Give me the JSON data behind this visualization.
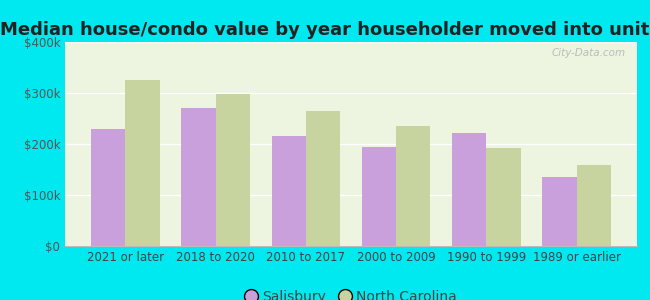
{
  "title": "Median house/condo value by year householder moved into unit",
  "categories": [
    "2021 or later",
    "2018 to 2020",
    "2010 to 2017",
    "2000 to 2009",
    "1990 to 1999",
    "1989 or earlier"
  ],
  "salisbury": [
    230000,
    270000,
    215000,
    195000,
    222000,
    135000
  ],
  "north_carolina": [
    325000,
    298000,
    265000,
    235000,
    192000,
    158000
  ],
  "salisbury_color": "#c9a0dc",
  "nc_color": "#c8d4a0",
  "background_color": "#edf5e0",
  "outer_background": "#00e8f0",
  "ylim": [
    0,
    400000
  ],
  "yticks": [
    0,
    100000,
    200000,
    300000,
    400000
  ],
  "ytick_labels": [
    "$0",
    "$100k",
    "$200k",
    "$300k",
    "$400k"
  ],
  "watermark": "City-Data.com",
  "legend_labels": [
    "Salisbury",
    "North Carolina"
  ],
  "bar_width": 0.38,
  "title_fontsize": 13,
  "tick_fontsize": 8.5,
  "legend_fontsize": 10
}
